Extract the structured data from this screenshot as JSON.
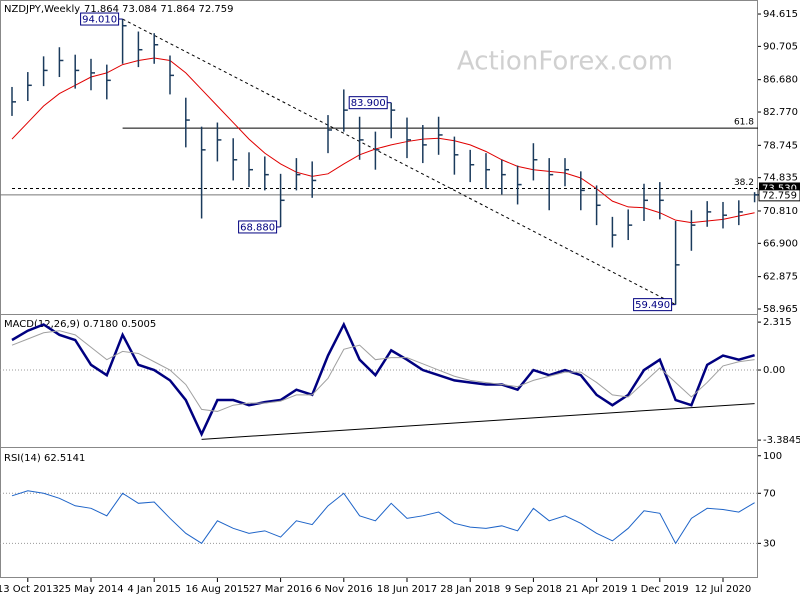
{
  "chart_data": [
    {
      "type": "ohlc",
      "title": "NZDJPY,Weekly",
      "header_values": "71.864 73.084 71.864 72.759",
      "watermark": "ActionForex.com",
      "categories": [
        null,
        "13 Oct 2013",
        null,
        null,
        null,
        "25 May 2014",
        null,
        null,
        null,
        "4 Jan 2015",
        null,
        null,
        null,
        "16 Aug 2015",
        null,
        null,
        null,
        "27 Mar 2016",
        null,
        null,
        null,
        "6 Nov 2016",
        null,
        null,
        null,
        "18 Jun 2017",
        null,
        null,
        null,
        "28 Jan 2018",
        null,
        null,
        null,
        "9 Sep 2018",
        null,
        null,
        null,
        "21 Apr 2019",
        null,
        null,
        null,
        "1 Dec 2019",
        null,
        null,
        null,
        "12 Jul 2020",
        null,
        null
      ],
      "high": [
        85.8,
        87.6,
        89.5,
        90.6,
        89.7,
        89.2,
        88.5,
        94.01,
        92.5,
        92.3,
        89.6,
        84.5,
        81.0,
        81.5,
        79.6,
        77.9,
        77.4,
        75.3,
        77.2,
        76.8,
        82.4,
        85.5,
        82.2,
        80.4,
        83.9,
        82.1,
        81.2,
        82.2,
        79.8,
        78.2,
        77.8,
        77.0,
        76.3,
        79.0,
        77.2,
        77.2,
        75.6,
        73.9,
        70.1,
        71.0,
        74.1,
        74.3,
        69.6,
        70.9,
        72.0,
        71.9,
        72.1,
        73.084
      ],
      "low": [
        82.3,
        84.1,
        85.9,
        87.0,
        85.6,
        85.4,
        84.3,
        88.6,
        88.2,
        88.6,
        84.9,
        78.5,
        69.9,
        76.8,
        74.5,
        73.7,
        73.3,
        68.88,
        73.3,
        72.4,
        77.8,
        80.4,
        77.0,
        75.8,
        79.6,
        77.2,
        76.6,
        77.6,
        75.2,
        74.3,
        73.5,
        72.8,
        71.6,
        74.5,
        70.9,
        73.8,
        70.9,
        69.1,
        66.4,
        67.3,
        69.6,
        69.8,
        59.49,
        66.0,
        68.9,
        68.7,
        69.1,
        71.864
      ],
      "close": [
        84.0,
        86.0,
        87.8,
        89.0,
        87.8,
        87.5,
        86.6,
        93.2,
        90.3,
        90.9,
        87.2,
        81.8,
        78.2,
        79.4,
        77.0,
        75.8,
        75.2,
        72.1,
        75.2,
        74.5,
        80.6,
        83.0,
        79.4,
        78.2,
        83.0,
        79.4,
        78.8,
        80.0,
        77.6,
        76.4,
        75.8,
        75.2,
        74.0,
        77.0,
        75.2,
        75.8,
        73.3,
        71.5,
        67.9,
        69.1,
        72.1,
        72.1,
        64.3,
        69.1,
        70.7,
        70.3,
        70.7,
        72.759
      ],
      "ma": [
        79.5,
        81.5,
        83.5,
        85.0,
        86.0,
        87.0,
        87.5,
        88.5,
        89.0,
        89.3,
        89.0,
        87.5,
        85.5,
        83.5,
        81.5,
        79.5,
        77.8,
        76.5,
        75.5,
        75.0,
        75.3,
        76.5,
        77.6,
        78.3,
        78.8,
        79.2,
        79.5,
        79.6,
        79.3,
        78.8,
        78.0,
        77.0,
        76.2,
        75.8,
        75.6,
        75.4,
        74.8,
        73.5,
        72.0,
        71.3,
        71.2,
        70.6,
        69.7,
        69.4,
        69.6,
        69.8,
        70.2,
        70.6
      ],
      "ma_color": "#e00000",
      "bar_color": "#1a3a5c",
      "ylim": [
        58.48,
        96.31
      ],
      "yticks": [
        94.615,
        90.705,
        {
          "value": 86.68,
          "label": "86.680"
        },
        {
          "value": 82.77,
          "label": "82.770"
        },
        78.745,
        74.835,
        {
          "value": 70.81,
          "label": "70.810"
        },
        {
          "value": 66.9,
          "label": "66.900"
        },
        62.875,
        58.965
      ],
      "levels": [
        {
          "label": "61.8",
          "value": 80.83,
          "style": "solid",
          "from_index": 7
        },
        {
          "label": "38.2",
          "value": 73.53,
          "value_label": "73.530",
          "style": "dashed",
          "from_index": 0
        }
      ],
      "annotations": [
        {
          "label": "94.010",
          "value": 94.01
        },
        {
          "label": "83.900",
          "value": 83.9
        },
        {
          "label": "68.880",
          "value": 68.88
        },
        {
          "label": "59.490",
          "value": 59.49
        }
      ],
      "trendline": {
        "from_index": 7,
        "from_value": 94.01,
        "to_index": 42,
        "to_value": 59.49
      }
    },
    {
      "type": "line",
      "title": "MACD(12,26,9) 0.7180 0.5005",
      "series": [
        {
          "color": "#000080",
          "width": 2.5,
          "values": [
            1.45,
            1.9,
            2.2,
            1.7,
            1.45,
            0.25,
            -0.25,
            1.7,
            0.25,
            0,
            -0.5,
            -1.45,
            -3.1,
            -1.45,
            -1.45,
            -1.7,
            -1.55,
            -1.45,
            -0.95,
            -1.2,
            0.7,
            2.2,
            0.5,
            -0.25,
            0.95,
            0.5,
            0,
            -0.25,
            -0.5,
            -0.6,
            -0.7,
            -0.7,
            -0.95,
            0,
            -0.25,
            0,
            -0.25,
            -1.2,
            -1.7,
            -1.2,
            0,
            0.5,
            -1.45,
            -1.7,
            0.25,
            0.7,
            0.5,
            0.718
          ]
        },
        {
          "color": "#a0a0a0",
          "width": 1,
          "values": [
            1.2,
            1.5,
            1.8,
            1.9,
            1.7,
            1.1,
            0.5,
            0.9,
            0.8,
            0.4,
            0,
            -0.7,
            -1.9,
            -2.0,
            -1.7,
            -1.6,
            -1.6,
            -1.5,
            -1.2,
            -1.2,
            -0.4,
            1.0,
            1.2,
            0.5,
            0.6,
            0.6,
            0.3,
            0,
            -0.3,
            -0.5,
            -0.6,
            -0.7,
            -0.8,
            -0.5,
            -0.3,
            -0.1,
            -0.1,
            -0.6,
            -1.2,
            -1.3,
            -0.6,
            0.1,
            -0.6,
            -1.3,
            -0.6,
            0.2,
            0.4,
            0.5005
          ]
        }
      ],
      "ylim": [
        -3.67,
        2.61
      ],
      "yticks": [
        2.315,
        {
          "value": 0,
          "label": "0.00"
        },
        -3.3845
      ],
      "levels": [
        0
      ],
      "trendline": {
        "from_index": 12,
        "from_value": -3.35,
        "to_index": 47,
        "to_value": -1.62
      }
    },
    {
      "type": "line",
      "title": "RSI(14) 62.5141",
      "series": [
        {
          "color": "#1e64c8",
          "width": 1,
          "values": [
            68,
            72,
            70,
            66,
            60,
            58,
            52,
            70,
            62,
            63,
            50,
            38,
            30,
            48,
            42,
            38,
            40,
            35,
            48,
            45,
            60,
            70,
            52,
            48,
            62,
            50,
            52,
            55,
            46,
            43,
            42,
            44,
            40,
            58,
            48,
            52,
            46,
            38,
            32,
            42,
            56,
            54,
            30,
            50,
            58,
            57,
            55,
            62.5141
          ]
        }
      ],
      "ylim": [
        2.3,
        105.4
      ],
      "yticks": [
        100,
        70,
        30
      ],
      "levels": [
        70,
        30
      ]
    }
  ]
}
